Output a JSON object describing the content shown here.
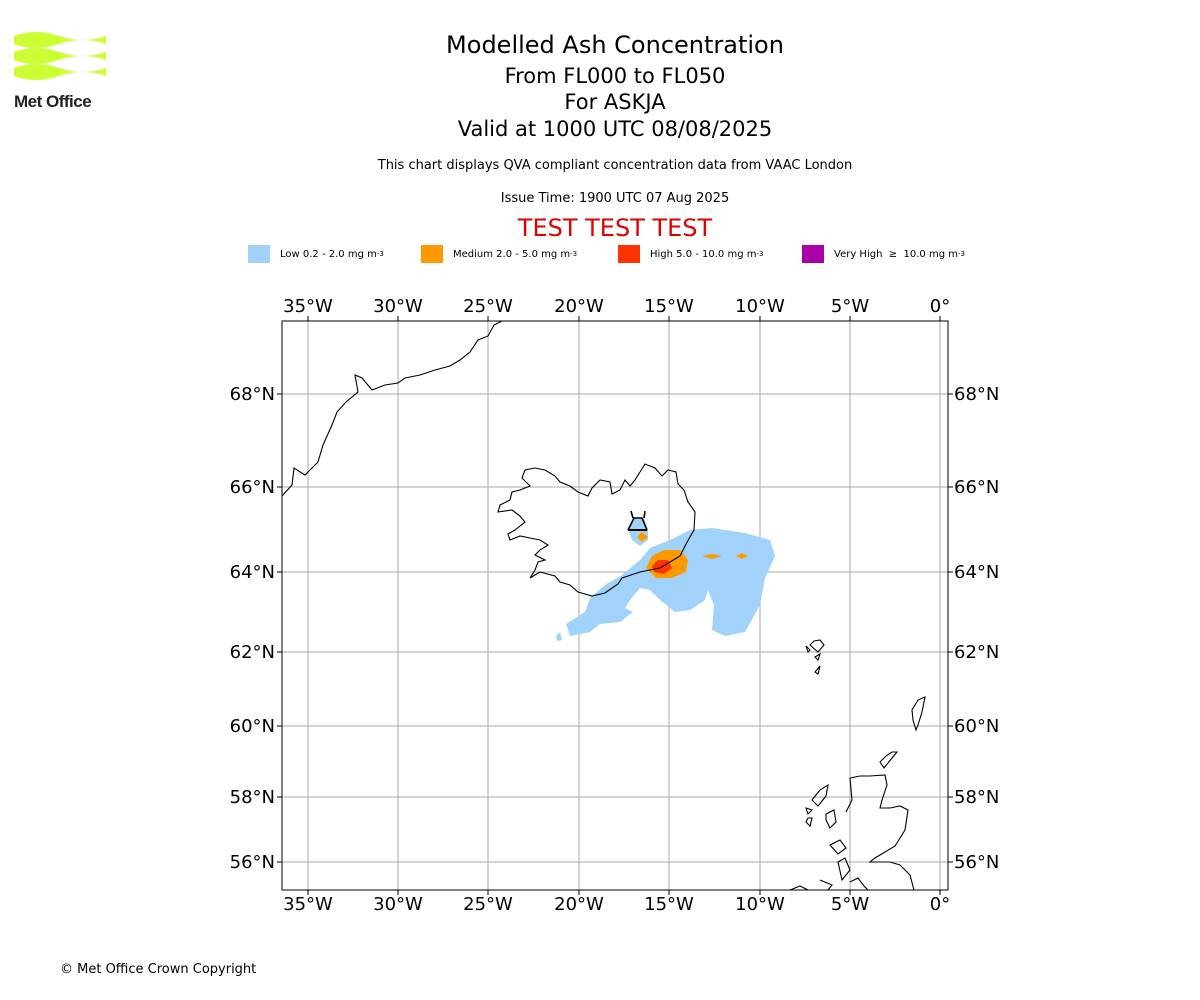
{
  "logo": {
    "text": "Met Office",
    "color": "#ccff33"
  },
  "header": {
    "title": "Modelled Ash Concentration",
    "levels": "From FL000 to FL050",
    "volcano": "For ASKJA",
    "valid": "Valid at 1000 UTC 08/08/2025",
    "description": "This chart displays QVA compliant concentration data from VAAC London",
    "issue_time": "Issue Time: 1900 UTC 07 Aug 2025",
    "test_banner": "TEST TEST TEST"
  },
  "legend": [
    {
      "label": "Low 0.2 - 2.0 mg m",
      "sup": "-3",
      "color": "#a0d2fa"
    },
    {
      "label": "Medium 2.0 - 5.0 mg m",
      "sup": "-3",
      "color": "#ff9900"
    },
    {
      "label": "High 5.0 - 10.0 mg m",
      "sup": "-3",
      "color": "#ff3300"
    },
    {
      "label": "Very High  ≥  10.0 mg m",
      "sup": "-3",
      "color": "#aa00aa"
    }
  ],
  "map": {
    "lon_labels": [
      "35°W",
      "30°W",
      "25°W",
      "20°W",
      "15°W",
      "10°W",
      "5°W",
      "0°"
    ],
    "lat_labels": [
      "68°N",
      "66°N",
      "64°N",
      "62°N",
      "60°N",
      "58°N",
      "56°N"
    ],
    "grid_color": "#aaaaaa"
  },
  "footer": {
    "copyright": "© Met Office Crown Copyright"
  }
}
